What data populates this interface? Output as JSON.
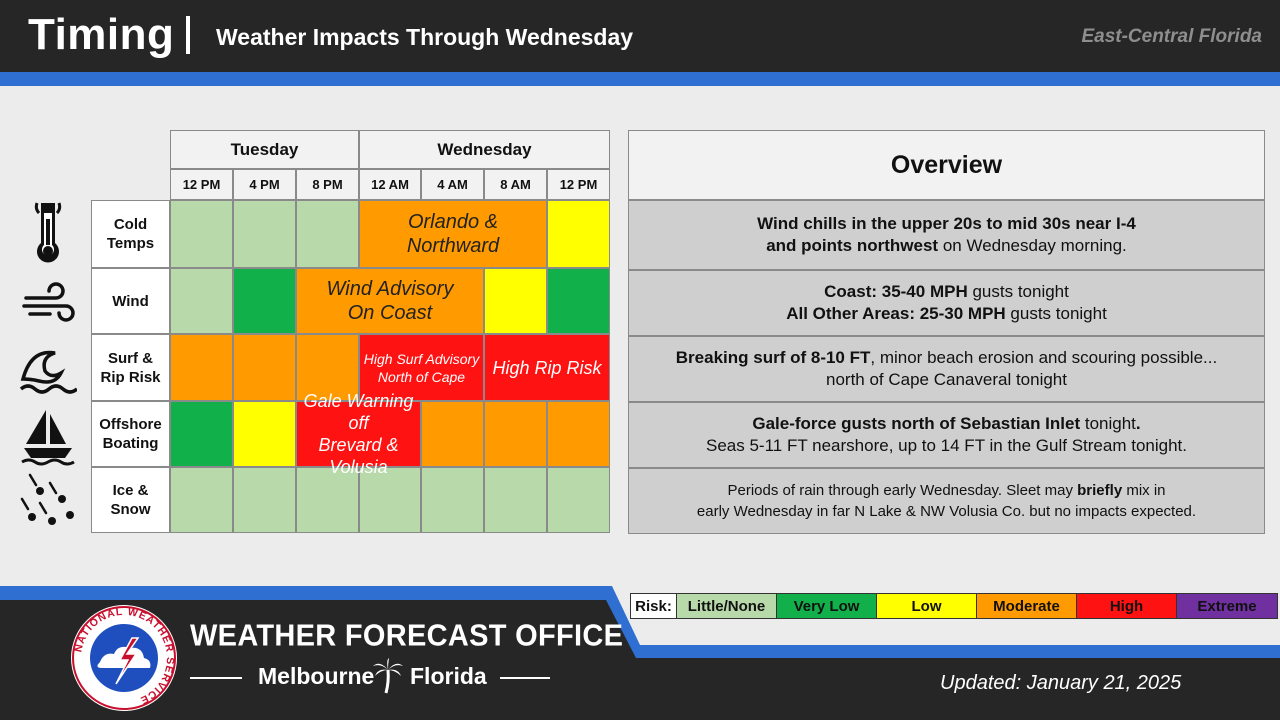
{
  "header": {
    "title": "Timing",
    "subtitle": "Weather Impacts Through Wednesday",
    "region": "East-Central Florida"
  },
  "days": [
    {
      "label": "Tuesday"
    },
    {
      "label": "Wednesday"
    }
  ],
  "times": [
    "12 PM",
    "4 PM",
    "8 PM",
    "12 AM",
    "4 AM",
    "8 AM",
    "12 PM"
  ],
  "rows": [
    {
      "label_line1": "Cold",
      "label_line2": "Temps",
      "icon": "thermometer-icon",
      "cells": [
        "Little/None",
        "Little/None",
        "Little/None",
        "Moderate",
        "Moderate",
        "Moderate",
        "Low"
      ],
      "note_line1": "Orlando &",
      "note_line2": "Northward"
    },
    {
      "label_line1": "Wind",
      "label_line2": "",
      "icon": "wind-icon",
      "cells": [
        "Little/None",
        "Very Low",
        "Moderate",
        "Moderate",
        "Moderate",
        "Low",
        "Very Low"
      ],
      "note_line1": "Wind Advisory",
      "note_line2": "On Coast"
    },
    {
      "label_line1": "Surf &",
      "label_line2": "Rip Risk",
      "icon": "wave-icon",
      "cells": [
        "Moderate",
        "Moderate",
        "Moderate",
        "High",
        "High",
        "High",
        "High"
      ],
      "note_a_line1": "High Surf Advisory",
      "note_a_line2": "North of Cape",
      "note_b": "High Rip Risk"
    },
    {
      "label_line1": "Offshore",
      "label_line2": "Boating",
      "icon": "sailboat-icon",
      "cells": [
        "Very Low",
        "Low",
        "High",
        "High",
        "Moderate",
        "Moderate",
        "Moderate"
      ],
      "note_line1": "Gale Warning off",
      "note_line2": "Brevard & Volusia"
    },
    {
      "label_line1": "Ice &",
      "label_line2": "Snow",
      "icon": "sleet-icon",
      "cells": [
        "Little/None",
        "Little/None",
        "Little/None",
        "Little/None",
        "Little/None",
        "Little/None",
        "Little/None"
      ]
    }
  ],
  "overview": {
    "title": "Overview",
    "rows": [
      {
        "l1_bold": "Wind chills in the upper 20s to mid 30s near I-4",
        "l2_bold": "and points northwest",
        "l2_rest": " on Wednesday morning."
      },
      {
        "l1_bold": "Coast: 35-40 MPH",
        "l1_rest": " gusts tonight",
        "l2_bold": "All Other Areas: 25-30 MPH",
        "l2_rest": " gusts tonight"
      },
      {
        "l1_bold": "Breaking surf of 8-10 FT",
        "l1_rest": ", minor beach erosion and scouring possible...",
        "l2_rest": "north of Cape Canaveral tonight"
      },
      {
        "l1_bold": "Gale-force gusts north of Sebastian Inlet",
        "l1_rest": " tonight",
        "l1_dot": ".",
        "l2_rest": "Seas 5-11 FT nearshore, up to 14 FT in the Gulf Stream tonight."
      },
      {
        "l1_pre": "Periods of rain through early Wednesday. Sleet may ",
        "l1_bold": "briefly",
        "l1_rest": " mix in",
        "l2_rest": "early Wednesday in far N Lake & NW Volusia Co. but no impacts expected."
      }
    ]
  },
  "legend": {
    "label": "Risk:",
    "levels": [
      {
        "name": "Little/None",
        "color": "#b8d9aa"
      },
      {
        "name": "Very Low",
        "color": "#12b04a"
      },
      {
        "name": "Low",
        "color": "#ffff00"
      },
      {
        "name": "Moderate",
        "color": "#ff9a00"
      },
      {
        "name": "High",
        "color": "#ff1212"
      },
      {
        "name": "Extreme",
        "color": "#7030a0"
      }
    ]
  },
  "footer": {
    "office": "WEATHER FORECAST OFFICE",
    "city": "Melbourne",
    "state": "Florida",
    "updated": "Updated: January 21, 2025",
    "seal_text": "NATIONAL WEATHER SERVICE"
  }
}
